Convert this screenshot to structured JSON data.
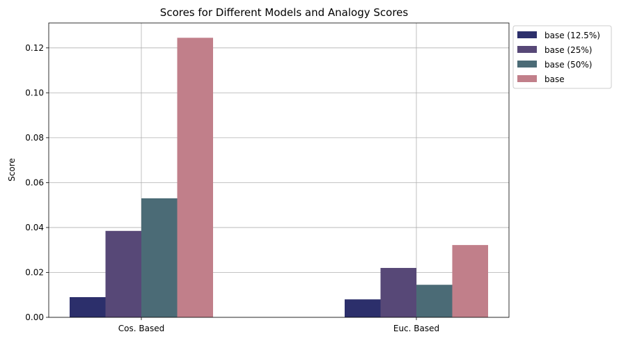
{
  "chart_data": {
    "type": "bar",
    "title": "Scores for Different Models and Analogy Scores",
    "xlabel": "",
    "ylabel": "Score",
    "ylim": [
      0,
      0.1311
    ],
    "yticks": [
      "0.00",
      "0.02",
      "0.04",
      "0.06",
      "0.08",
      "0.10",
      "0.12"
    ],
    "categories": [
      "Cos. Based",
      "Euc. Based"
    ],
    "series": [
      {
        "name": "base (12.5%)",
        "color": "#2c2f6b",
        "values": [
          0.009,
          0.008
        ]
      },
      {
        "name": "base (25%)",
        "color": "#574877",
        "values": [
          0.0385,
          0.022
        ]
      },
      {
        "name": "base (50%)",
        "color": "#4b6b76",
        "values": [
          0.053,
          0.0145
        ]
      },
      {
        "name": "base",
        "color": "#c17f8a",
        "values": [
          0.1245,
          0.0322
        ]
      }
    ],
    "grid": true,
    "legend_position": "outside top-right"
  }
}
